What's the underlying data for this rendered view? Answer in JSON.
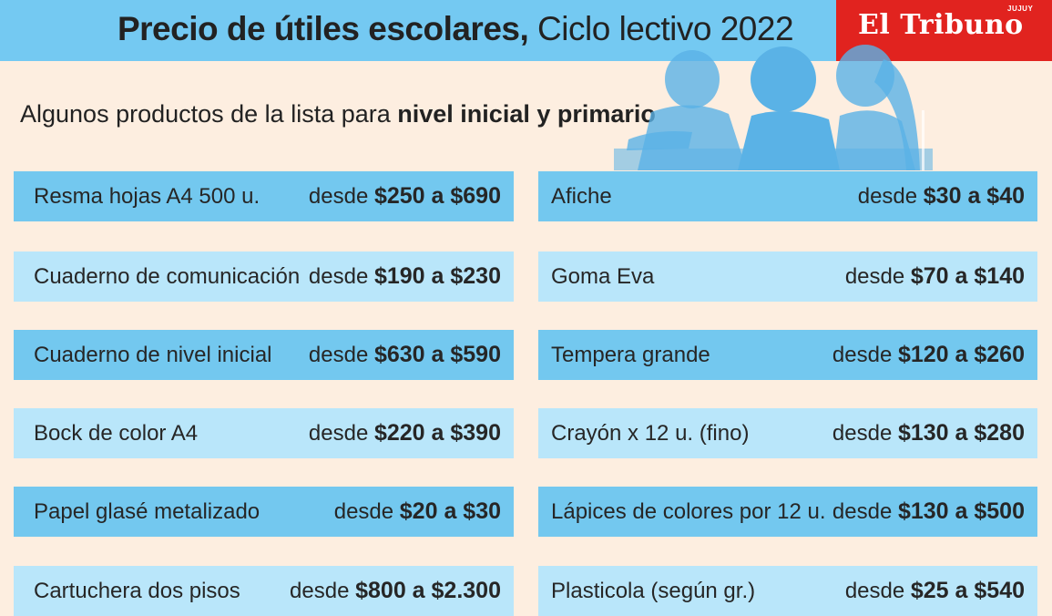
{
  "header": {
    "title_bold": "Precio de útiles escolares,",
    "title_light": "Ciclo lectivo 2022",
    "brand": "El Tribuno",
    "brand_tag": "JUJUY"
  },
  "subtitle": {
    "normal": "Algunos productos de la lista para",
    "bold": "nivel inicial y primario"
  },
  "illustration": {
    "icon": "students-silhouette-icon",
    "color": "#5ab2e6"
  },
  "colors": {
    "header": "#74c9f2",
    "brand": "#e1231f",
    "background": "#fdeee0",
    "row_dark": "#73c8ef",
    "row_light": "#b9e6fa"
  },
  "left_items": [
    {
      "name": "Resma hojas A4  500 u.",
      "desde": "desde",
      "range": "$250 a $690"
    },
    {
      "name": "Cuaderno de comunicación",
      "desde": "desde",
      "range": "$190 a $230"
    },
    {
      "name": "Cuaderno de nivel inicial",
      "desde": "desde",
      "range": "$630 a $590"
    },
    {
      "name": "Bock de color A4",
      "desde": "desde",
      "range": "$220 a $390"
    },
    {
      "name": "Papel glasé metalizado",
      "desde": "desde",
      "range": "$20 a $30"
    },
    {
      "name": "Cartuchera dos pisos",
      "desde": "desde",
      "range": "$800 a $2.300"
    }
  ],
  "right_items": [
    {
      "name": "Afiche",
      "desde": "desde",
      "range": "$30 a $40"
    },
    {
      "name": "Goma Eva",
      "desde": "desde",
      "range": "$70 a $140"
    },
    {
      "name": "Tempera grande",
      "desde": "desde",
      "range": "$120 a $260"
    },
    {
      "name": "Crayón x 12 u. (fino)",
      "desde": "desde",
      "range": "$130 a $280"
    },
    {
      "name": "Lápices de colores por 12 u.",
      "desde": "desde",
      "range": "$130 a $500"
    },
    {
      "name": "Plasticola (según gr.)",
      "desde": "desde",
      "range": "$25 a $540"
    }
  ]
}
